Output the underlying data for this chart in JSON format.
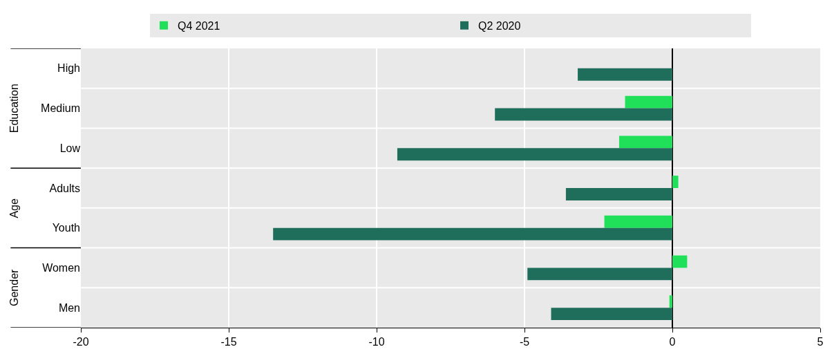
{
  "chart_data": {
    "type": "bar",
    "orientation": "horizontal",
    "categories": [
      "High",
      "Medium",
      "Low",
      "Adults",
      "Youth",
      "Women",
      "Men"
    ],
    "series": [
      {
        "name": "Q4 2021",
        "color": "#20e05a",
        "values": [
          null,
          -1.6,
          -1.8,
          0.2,
          -2.3,
          0.5,
          -0.1
        ]
      },
      {
        "name": "Q2 2020",
        "color": "#1f6e5c",
        "values": [
          -3.2,
          -6.0,
          -9.3,
          -3.6,
          -13.5,
          -4.9,
          -4.1
        ]
      }
    ],
    "xlim": [
      -20,
      5
    ],
    "xticks": [
      -20,
      -15,
      -10,
      -5,
      0,
      5
    ],
    "annotations": [
      "Education",
      "Age",
      "Gender"
    ],
    "grid": "x",
    "legend": "top"
  }
}
